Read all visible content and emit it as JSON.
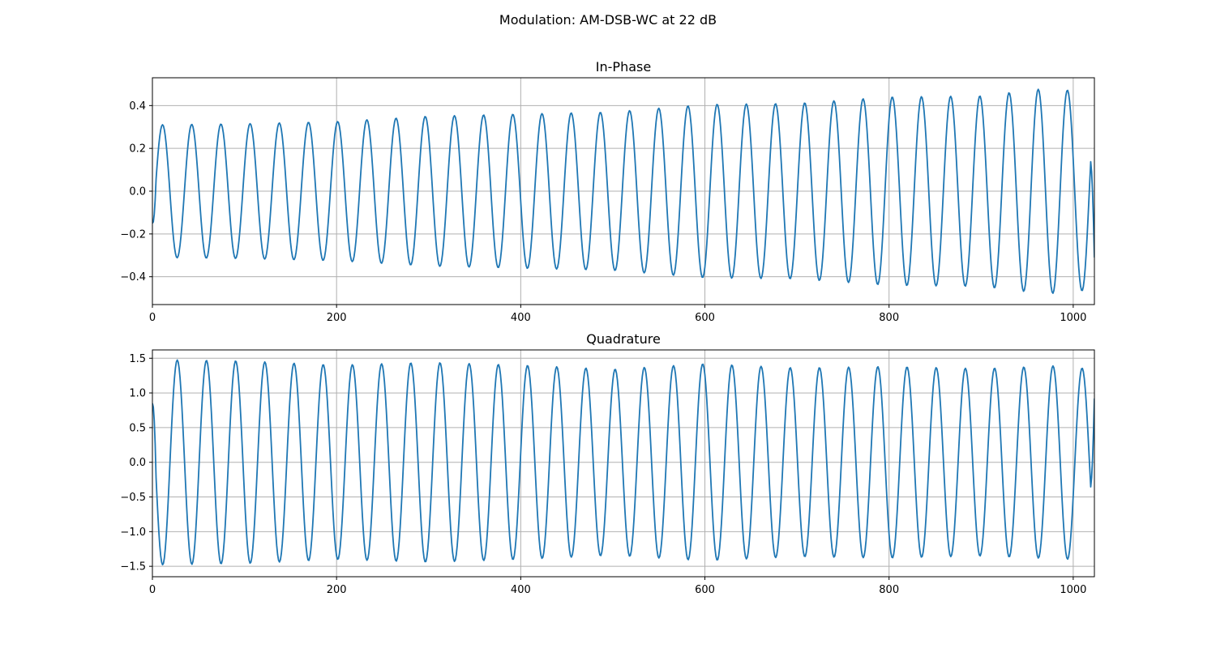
{
  "figure": {
    "suptitle": "Modulation: AM-DSB-WC at 22 dB"
  },
  "chart_data": [
    {
      "type": "line",
      "title": "In-Phase",
      "xlabel": "",
      "ylabel": "",
      "xlim": [
        0,
        1023
      ],
      "ylim": [
        -0.53,
        0.53
      ],
      "xticks": [
        0,
        200,
        400,
        600,
        800,
        1000
      ],
      "xtick_labels": [
        "0",
        "200",
        "400",
        "600",
        "800",
        "1000"
      ],
      "yticks": [
        -0.4,
        -0.2,
        0.0,
        0.2,
        0.4
      ],
      "ytick_labels": [
        "−0.4",
        "−0.2",
        "0.0",
        "0.2",
        "0.4"
      ],
      "grid": true,
      "color": "#1f77b4",
      "signal": {
        "n_samples": 1024,
        "period": 31.7,
        "first_peak_x": 11,
        "initial_value": -0.15,
        "final_value": -0.31,
        "envelope_x": [
          0,
          100,
          200,
          300,
          400,
          500,
          600,
          700,
          800,
          900,
          970,
          1000,
          1023
        ],
        "envelope_amplitude": [
          0.31,
          0.315,
          0.325,
          0.35,
          0.36,
          0.37,
          0.405,
          0.41,
          0.44,
          0.445,
          0.48,
          0.47,
          0.46
        ]
      }
    },
    {
      "type": "line",
      "title": "Quadrature",
      "xlabel": "",
      "ylabel": "",
      "xlim": [
        0,
        1023
      ],
      "ylim": [
        -1.65,
        1.62
      ],
      "xticks": [
        0,
        200,
        400,
        600,
        800,
        1000
      ],
      "xtick_labels": [
        "0",
        "200",
        "400",
        "600",
        "800",
        "1000"
      ],
      "yticks": [
        -1.5,
        -1.0,
        -0.5,
        0.0,
        0.5,
        1.0,
        1.5
      ],
      "ytick_labels": [
        "−1.5",
        "−1.0",
        "−0.5",
        "0.0",
        "0.5",
        "1.0",
        "1.5"
      ],
      "grid": true,
      "color": "#1f77b4",
      "signal": {
        "n_samples": 1024,
        "period": 31.7,
        "first_peak_x": 27,
        "initial_value": 0.85,
        "final_value": 0.92,
        "envelope_x": [
          0,
          100,
          200,
          300,
          400,
          500,
          600,
          700,
          800,
          900,
          1000,
          1023
        ],
        "envelope_amplitude": [
          1.48,
          1.46,
          1.4,
          1.44,
          1.4,
          1.34,
          1.42,
          1.36,
          1.38,
          1.35,
          1.4,
          1.3
        ]
      }
    }
  ]
}
